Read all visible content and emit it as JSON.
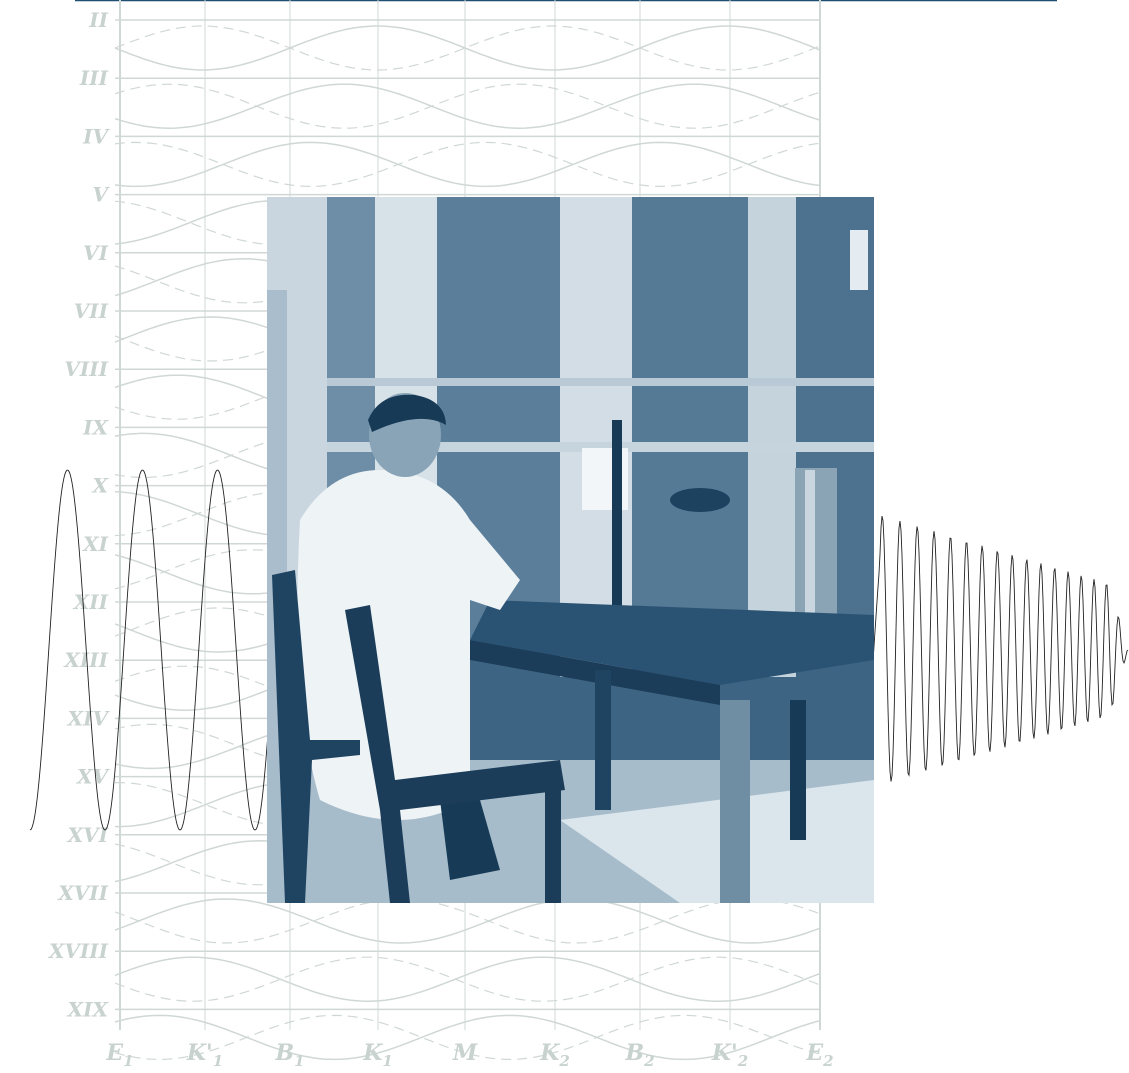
{
  "diagram": {
    "row_labels": [
      "II",
      "III",
      "IV",
      "V",
      "VI",
      "VII",
      "VIII",
      "IX",
      "X",
      "XI",
      "XII",
      "XIII",
      "XIV",
      "XV",
      "XVI",
      "XVII",
      "XVIII",
      "XIX"
    ],
    "column_labels": [
      {
        "main": "E",
        "sub": "1"
      },
      {
        "main": "K'",
        "sub": "1"
      },
      {
        "main": "B",
        "sub": "1"
      },
      {
        "main": "K",
        "sub": "1"
      },
      {
        "main": "M",
        "sub": null
      },
      {
        "main": "K",
        "sub": "2"
      },
      {
        "main": "B",
        "sub": "2"
      },
      {
        "main": "K'",
        "sub": "2"
      },
      {
        "main": "E",
        "sub": "2"
      }
    ]
  }
}
